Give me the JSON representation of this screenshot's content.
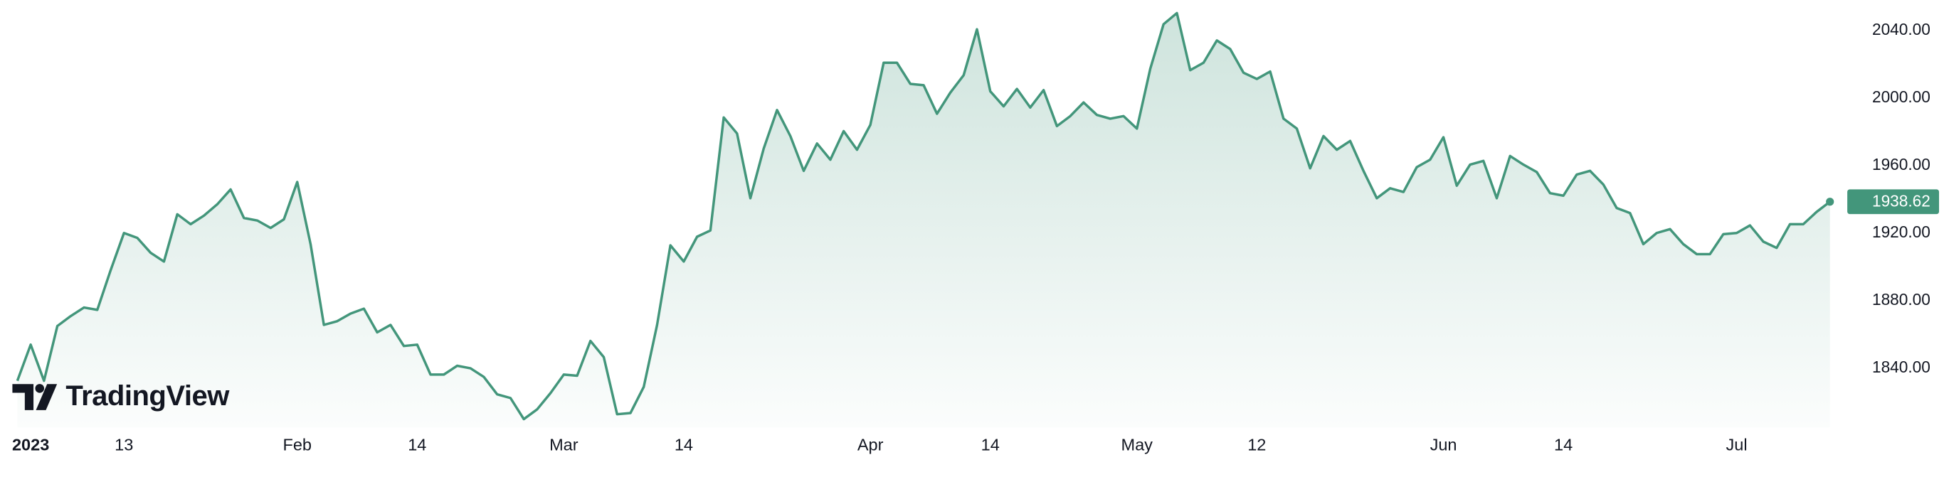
{
  "chart_data": {
    "type": "line",
    "watermark": "TradingView",
    "color": "#43967b",
    "categories": [
      null,
      "2023",
      null,
      null,
      null,
      null,
      null,
      null,
      "13",
      null,
      null,
      null,
      null,
      null,
      null,
      null,
      null,
      null,
      null,
      null,
      null,
      "Feb",
      null,
      null,
      null,
      null,
      null,
      null,
      null,
      null,
      "14",
      null,
      null,
      null,
      null,
      null,
      null,
      null,
      null,
      null,
      null,
      "Mar",
      null,
      null,
      null,
      null,
      null,
      null,
      null,
      null,
      "14",
      null,
      null,
      null,
      null,
      null,
      null,
      null,
      null,
      null,
      null,
      null,
      null,
      null,
      "Apr",
      null,
      null,
      null,
      null,
      null,
      null,
      null,
      null,
      "14",
      null,
      null,
      null,
      null,
      null,
      null,
      null,
      null,
      null,
      null,
      "May",
      null,
      null,
      null,
      null,
      null,
      null,
      null,
      null,
      "12",
      null,
      null,
      null,
      null,
      null,
      null,
      null,
      null,
      null,
      null,
      null,
      null,
      null,
      "Jun",
      null,
      null,
      null,
      null,
      null,
      null,
      null,
      null,
      "14",
      null,
      null,
      null,
      null,
      null,
      null,
      null,
      null,
      null,
      null,
      null,
      null,
      "Jul",
      null,
      null,
      null,
      null,
      null,
      null,
      null
    ],
    "values": [
      1832.6,
      1854.0,
      1832.6,
      1865.0,
      1870.9,
      1876.0,
      1874.6,
      1898.1,
      1920.1,
      1917.2,
      1908.4,
      1903.2,
      1931.2,
      1925.3,
      1930.4,
      1937.1,
      1945.9,
      1929.0,
      1927.5,
      1923.1,
      1928.2,
      1950.3,
      1913.5,
      1865.7,
      1867.9,
      1872.4,
      1875.3,
      1861.3,
      1865.7,
      1853.2,
      1854.0,
      1836.3,
      1836.3,
      1841.5,
      1840.0,
      1834.9,
      1824.6,
      1822.4,
      1809.9,
      1815.7,
      1825.3,
      1836.3,
      1835.6,
      1856.2,
      1846.6,
      1812.8,
      1813.5,
      1829.0,
      1865.7,
      1912.8,
      1903.2,
      1917.9,
      1921.6,
      1988.5,
      1979.0,
      1940.7,
      1970.1,
      1992.9,
      1977.5,
      1956.9,
      1973.1,
      1963.5,
      1980.4,
      1969.4,
      1984.1,
      2020.9,
      2020.9,
      2008.4,
      2007.6,
      1990.7,
      2003.2,
      2013.5,
      2040.7,
      2004.0,
      1995.1,
      2005.4,
      1994.4,
      2004.7,
      1983.4,
      1989.3,
      1997.4,
      1990.0,
      1987.8,
      1989.3,
      1981.9,
      2017.2,
      2043.7,
      2050.3,
      2016.5,
      2020.9,
      2034.1,
      2029.0,
      2015.0,
      2011.3,
      2015.7,
      1987.8,
      1981.9,
      1958.4,
      1977.5,
      1969.4,
      1974.6,
      1956.9,
      1940.7,
      1946.6,
      1944.4,
      1959.1,
      1963.5,
      1976.8,
      1948.1,
      1960.6,
      1962.8,
      1940.7,
      1965.7,
      1960.6,
      1956.2,
      1943.7,
      1942.2,
      1954.7,
      1956.9,
      1948.8,
      1934.9,
      1931.9,
      1913.5,
      1920.1,
      1922.4,
      1913.5,
      1907.6,
      1907.6,
      1919.4,
      1920.1,
      1924.6,
      1915.0,
      1911.3,
      1925.3,
      1925.3,
      1932.6,
      1938.62
    ],
    "ylim": [
      1805,
      2058
    ],
    "yticks": [
      {
        "value": 1840,
        "label": "1840.00"
      },
      {
        "value": 1880,
        "label": "1880.00"
      },
      {
        "value": 1920,
        "label": "1920.00"
      },
      {
        "value": 1960,
        "label": "1960.00"
      },
      {
        "value": 2000,
        "label": "2000.00"
      },
      {
        "value": 2040,
        "label": "2040.00"
      }
    ]
  }
}
